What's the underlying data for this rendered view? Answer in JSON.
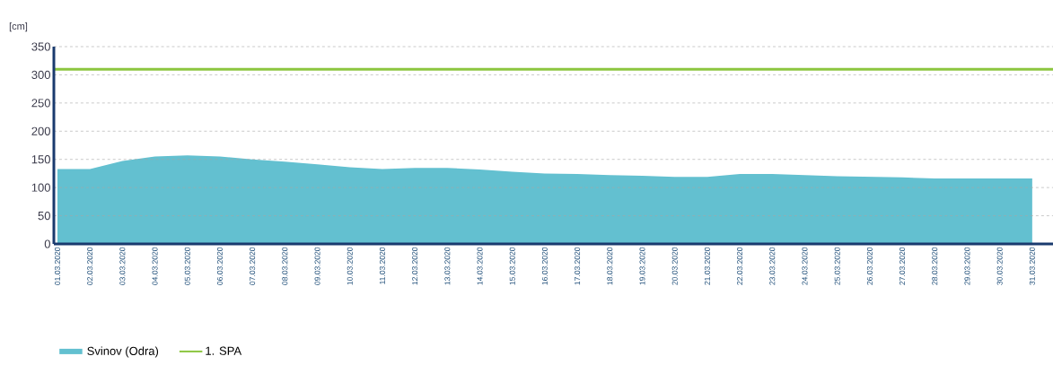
{
  "chart_data": {
    "type": "area",
    "ylabel": "[cm]",
    "categories": [
      "01.03.2020",
      "02.03.2020",
      "03.03.2020",
      "04.03.2020",
      "05.03.2020",
      "06.03.2020",
      "07.03.2020",
      "08.03.2020",
      "09.03.2020",
      "10.03.2020",
      "11.03.2020",
      "12.03.2020",
      "13.03.2020",
      "14.03.2020",
      "15.03.2020",
      "16.03.2020",
      "17.03.2020",
      "18.03.2020",
      "19.03.2020",
      "20.03.2020",
      "21.03.2020",
      "22.03.2020",
      "23.03.2020",
      "24.03.2020",
      "25.03.2020",
      "26.03.2020",
      "27.03.2020",
      "28.03.2020",
      "29.03.2020",
      "30.03.2020",
      "31.03.2020"
    ],
    "series": [
      {
        "name": "Svinov (Odra)",
        "color": "#63c0d0",
        "values": [
          133,
          133,
          147,
          155,
          157,
          155,
          150,
          146,
          141,
          136,
          133,
          135,
          135,
          132,
          128,
          125,
          124,
          122,
          121,
          119,
          119,
          124,
          124,
          122,
          120,
          119,
          118,
          116,
          116,
          116,
          116
        ]
      }
    ],
    "ylim": [
      0,
      350
    ],
    "yticks": [
      0,
      50,
      100,
      150,
      200,
      250,
      300,
      350
    ],
    "ref_lines": [
      {
        "axis": "y",
        "value": 310,
        "label": "1. SPA",
        "color": "#8cc63f"
      }
    ],
    "grid": "y",
    "legend": "bottom left"
  }
}
